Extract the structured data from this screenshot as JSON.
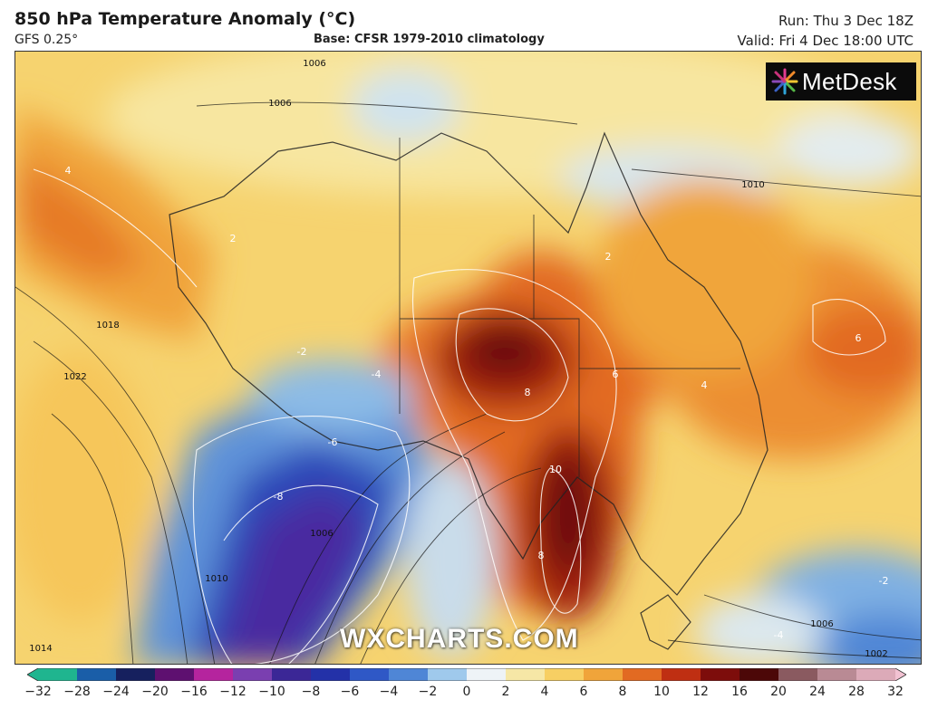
{
  "header": {
    "title": "850 hPa Temperature Anomaly (°C)",
    "model": "GFS 0.25°",
    "base": "Base: CFSR 1979-2010 climatology",
    "run": "Run: Thu 3 Dec 18Z",
    "valid": "Valid: Fri 4 Dec 18:00 UTC"
  },
  "brand": {
    "logo_text": "MetDesk",
    "watermark": "WXCHARTS.COM"
  },
  "map": {
    "anomaly_labels": [
      "4",
      "2",
      "6",
      "6",
      "8",
      "10",
      "8",
      "-4",
      "-6",
      "-8",
      "-2",
      "4",
      "2",
      "-2",
      "-4"
    ],
    "pressure_labels": [
      "1006",
      "1006",
      "1010",
      "1018",
      "1022",
      "1010",
      "1006",
      "1014",
      "1002",
      "1006"
    ]
  },
  "colorbar": {
    "ticks": [
      "-32",
      "-28",
      "-24",
      "-20",
      "-16",
      "-12",
      "-10",
      "-8",
      "-6",
      "-4",
      "-2",
      "0",
      "2",
      "4",
      "6",
      "8",
      "10",
      "12",
      "16",
      "20",
      "24",
      "28",
      "32"
    ],
    "colors": [
      "#1fb58f",
      "#1a5ea8",
      "#16205e",
      "#5e1070",
      "#b5249e",
      "#7a3fb0",
      "#3b2796",
      "#2331a8",
      "#2f58c6",
      "#4f86d6",
      "#9fc9ec",
      "#eef3f7",
      "#f6e7a6",
      "#f7cf63",
      "#f0a43a",
      "#e26a22",
      "#bf2f12",
      "#7d0d0b",
      "#4c0808",
      "#8a5a60",
      "#b98a94",
      "#dcaab8",
      "#f2c2d2"
    ]
  }
}
